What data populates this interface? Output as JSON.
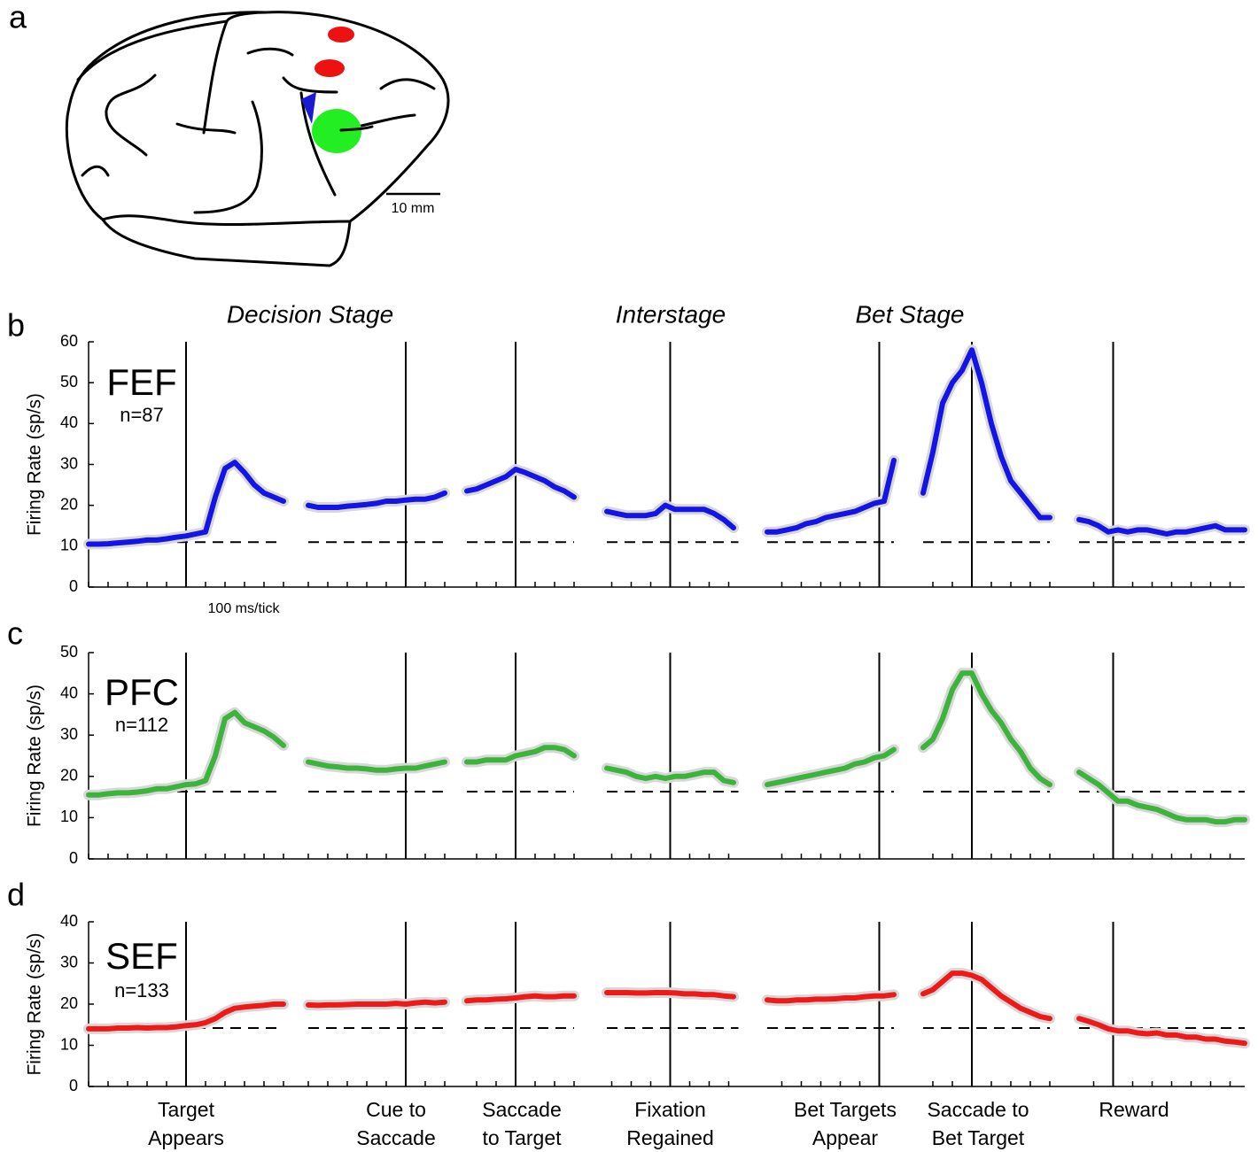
{
  "panel_a": {
    "label": "a",
    "scale_label": "10 mm"
  },
  "chart_data": {
    "type": "line",
    "stage_titles": [
      "Decision Stage",
      "Interstage",
      "Bet Stage"
    ],
    "tick_note": "100 ms/tick",
    "segments": [
      {
        "event": [
          "Target",
          "Appears"
        ],
        "xlim": [
          -500,
          500
        ],
        "x": [
          -500,
          -450,
          -400,
          -350,
          -300,
          -250,
          -200,
          -150,
          -100,
          -50,
          0,
          50,
          100,
          150,
          200,
          250,
          300,
          350,
          400,
          450,
          500
        ],
        "xticks": [
          -500,
          -400,
          -300,
          -200,
          -100,
          0,
          100,
          200,
          300,
          400,
          500
        ]
      },
      {
        "event": [
          "Cue to",
          "Saccade"
        ],
        "xlim": [
          -500,
          200
        ],
        "x": [
          -500,
          -450,
          -400,
          -350,
          -300,
          -250,
          -200,
          -150,
          -100,
          -50,
          0,
          50,
          100,
          150,
          200
        ],
        "xticks": [
          -500,
          -400,
          -300,
          -200,
          -100,
          0,
          100,
          200
        ]
      },
      {
        "event": [
          "Saccade",
          "to Target"
        ],
        "xlim": [
          -250,
          300
        ],
        "x": [
          -250,
          -200,
          -150,
          -100,
          -50,
          0,
          50,
          100,
          150,
          200,
          250,
          300
        ],
        "xticks": [
          -200,
          -100,
          0,
          100,
          200,
          300
        ]
      },
      {
        "event": [
          "Fixation",
          "Regained"
        ],
        "xlim": [
          -325,
          350
        ],
        "x": [
          -325,
          -275,
          -225,
          -175,
          -125,
          -75,
          -25,
          25,
          75,
          125,
          175,
          225,
          275,
          325
        ],
        "xticks": [
          -300,
          -200,
          -100,
          0,
          100,
          200,
          300
        ]
      },
      {
        "event": [
          "Bet Targets",
          "Appear"
        ],
        "xlim": [
          -575,
          75
        ],
        "x": [
          -575,
          -525,
          -475,
          -425,
          -375,
          -325,
          -275,
          -225,
          -175,
          -125,
          -75,
          -25,
          25,
          75
        ],
        "xticks": [
          -500,
          -400,
          -300,
          -200,
          -100,
          0
        ]
      },
      {
        "event": [
          "Saccade to",
          "Bet Target"
        ],
        "xlim": [
          -250,
          400
        ],
        "x": [
          -250,
          -200,
          -150,
          -100,
          -50,
          0,
          50,
          100,
          150,
          200,
          250,
          300,
          350,
          400
        ],
        "xticks": [
          -200,
          -100,
          0,
          100,
          200,
          300,
          400
        ]
      },
      {
        "event": [
          "Reward"
        ],
        "xlim": [
          -175,
          675
        ],
        "x": [
          -175,
          -125,
          -75,
          -25,
          25,
          75,
          125,
          175,
          225,
          275,
          325,
          375,
          425,
          475,
          525,
          575,
          625,
          675
        ],
        "xticks": [
          -100,
          0,
          100,
          200,
          300,
          400,
          500,
          600
        ]
      }
    ],
    "panels": [
      {
        "label": "b",
        "area": "FEF",
        "n": "n=87",
        "ylabel": "Firing Rate (sp/s)",
        "ylim": [
          0,
          60
        ],
        "yticks": [
          0,
          10,
          20,
          30,
          40,
          50,
          60
        ],
        "color": "#1414e6",
        "baseline": 11,
        "values": [
          [
            10.5,
            10.5,
            10.6,
            10.8,
            11,
            11.2,
            11.5,
            11.5,
            11.8,
            12.2,
            12.5,
            13,
            13.5,
            22,
            29,
            30.5,
            28,
            25,
            23,
            22,
            21
          ],
          [
            20,
            19.5,
            19.5,
            19.5,
            19.8,
            20,
            20.2,
            20.5,
            21,
            21,
            21.3,
            21.5,
            21.5,
            22,
            23
          ],
          [
            23.5,
            24,
            25,
            26,
            27,
            28.8,
            28,
            27,
            26,
            24.5,
            23.5,
            22
          ],
          [
            18.5,
            18,
            17.5,
            17.5,
            17.5,
            18,
            20,
            19,
            19,
            19,
            19,
            18,
            16.5,
            14.5
          ],
          [
            13.5,
            13.5,
            14,
            14.5,
            15.5,
            16,
            17,
            17.5,
            18,
            18.5,
            19.5,
            20.5,
            21,
            31
          ],
          [
            23,
            33,
            45,
            50,
            53,
            58,
            50,
            40,
            32,
            26,
            23,
            20,
            17,
            17
          ],
          [
            16.5,
            16,
            15,
            13.5,
            14,
            13.5,
            14,
            14,
            13.5,
            13,
            13.5,
            13.5,
            14,
            14.5,
            15,
            14,
            14,
            14
          ]
        ]
      },
      {
        "label": "c",
        "area": "PFC",
        "n": "n=112",
        "ylabel": "Firing Rate (sp/s)",
        "ylim": [
          0,
          50
        ],
        "yticks": [
          0,
          10,
          20,
          30,
          40,
          50
        ],
        "color": "#3cb43c",
        "baseline": 16.3,
        "values": [
          [
            15.5,
            15.5,
            15.8,
            16,
            16,
            16.2,
            16.5,
            17,
            17,
            17.5,
            18,
            18.2,
            19,
            25,
            34,
            35.5,
            33,
            32,
            31,
            29.5,
            27.5
          ],
          [
            23.5,
            23,
            22.5,
            22.3,
            22,
            22,
            21.8,
            21.5,
            21.5,
            21.8,
            22,
            22,
            22.5,
            23,
            23.5
          ],
          [
            23.5,
            23.5,
            24,
            24,
            24,
            25,
            25.5,
            26,
            27,
            27,
            26.5,
            25
          ],
          [
            22,
            21.5,
            21,
            20,
            19.5,
            20,
            19.5,
            20,
            20,
            20.5,
            21,
            21,
            19,
            18.5
          ],
          [
            18,
            18.5,
            19,
            19.5,
            20,
            20.5,
            21,
            21.5,
            22,
            23,
            23.5,
            24.5,
            25,
            26.5
          ],
          [
            27,
            29,
            34,
            41,
            45,
            45,
            40,
            36,
            33,
            29,
            26,
            22,
            19.5,
            18
          ],
          [
            21,
            19.5,
            18,
            16,
            14,
            14,
            13,
            12.5,
            12,
            11,
            10,
            9.5,
            9.5,
            9.5,
            9,
            9,
            9.5,
            9.5
          ]
        ]
      },
      {
        "label": "d",
        "area": "SEF",
        "n": "n=133",
        "ylabel": "Firing Rate (sp/s)",
        "ylim": [
          0,
          40
        ],
        "yticks": [
          0,
          10,
          20,
          30,
          40
        ],
        "color": "#ee1a1a",
        "baseline": 14.2,
        "values": [
          [
            14,
            14,
            14,
            14.2,
            14.2,
            14.3,
            14.2,
            14.3,
            14.3,
            14.5,
            14.8,
            15,
            15.5,
            16.5,
            18,
            19,
            19.3,
            19.5,
            19.7,
            20,
            20
          ],
          [
            19.8,
            19.7,
            19.8,
            19.8,
            19.9,
            20,
            20,
            20,
            20,
            20.2,
            20,
            20.3,
            20.5,
            20.3,
            20.5
          ],
          [
            20.8,
            21,
            21,
            21.2,
            21.3,
            21.5,
            21.8,
            22,
            21.8,
            21.8,
            22,
            22
          ],
          [
            22.8,
            22.8,
            22.8,
            22.7,
            22.7,
            22.8,
            22.8,
            22.7,
            22.5,
            22.5,
            22.3,
            22.3,
            22,
            21.8
          ],
          [
            21,
            20.8,
            20.8,
            21,
            21,
            21.2,
            21.2,
            21.3,
            21.5,
            21.5,
            21.8,
            22,
            22,
            22.3
          ],
          [
            22.5,
            23.5,
            25.5,
            27.5,
            27.5,
            27,
            26,
            24,
            22,
            20.5,
            19,
            18,
            17,
            16.5
          ],
          [
            16.5,
            15.8,
            15,
            14,
            13.5,
            13.5,
            13,
            12.8,
            13,
            12.5,
            12.5,
            12,
            12,
            11.5,
            11.5,
            11,
            10.8,
            10.5
          ]
        ]
      }
    ]
  }
}
